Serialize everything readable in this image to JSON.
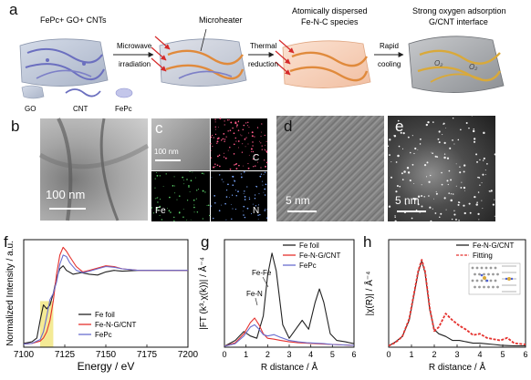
{
  "panels": {
    "a": {
      "label": "a",
      "step0_title": "FePc+ GO+ CNTs",
      "step1_title": "Microheater",
      "step2_title_line1": "Atomically dispersed",
      "step2_title_line2": "Fe-N-C species",
      "step3_title_line1": "Strong oxygen adsorption",
      "step3_title_line2": "G/CNT interface",
      "arrow1_line1": "Microwave",
      "arrow1_line2": "irradiation",
      "arrow2_line1": "Thermal",
      "arrow2_line2": "reduction",
      "arrow3_line1": "Rapid",
      "arrow3_line2": "cooling",
      "o2_label": "O₂",
      "legend": [
        "GO",
        "CNT",
        "FePc"
      ]
    },
    "b": {
      "label": "b",
      "scale": "100 nm"
    },
    "c": {
      "label": "c",
      "scale": "100 nm",
      "maps": [
        "C",
        "Fe",
        "N"
      ]
    },
    "d": {
      "label": "d",
      "scale": "5 nm"
    },
    "e": {
      "label": "e",
      "scale": "5 nm"
    },
    "f": {
      "label": "f"
    },
    "g": {
      "label": "g"
    },
    "h": {
      "label": "h"
    }
  },
  "chart_data": [
    {
      "type": "line",
      "panel": "f",
      "xlabel": "Energy / eV",
      "ylabel": "Normalized Intensity / a.u.",
      "xlim": [
        7100,
        7200
      ],
      "xticks": [
        7100,
        7125,
        7150,
        7175,
        7200
      ],
      "highlight_range": [
        7110,
        7118
      ],
      "highlight_color": "#f3e88a",
      "series": [
        {
          "name": "Fe foil",
          "color": "#222222",
          "x": [
            7100,
            7105,
            7108,
            7110,
            7112,
            7114,
            7116,
            7118,
            7120,
            7122,
            7124,
            7126,
            7130,
            7135,
            7140,
            7145,
            7150,
            7155,
            7160,
            7170,
            7180,
            7190,
            7200
          ],
          "y": [
            0.05,
            0.07,
            0.12,
            0.35,
            0.55,
            0.5,
            0.55,
            0.7,
            0.9,
            1.02,
            1.06,
            1.0,
            0.95,
            0.97,
            0.95,
            0.94,
            0.98,
            1.0,
            0.99,
            1.0,
            1.0,
            1.0,
            1.0
          ]
        },
        {
          "name": "Fe-N-G/CNT",
          "color": "#e5312d",
          "x": [
            7100,
            7105,
            7110,
            7112,
            7114,
            7116,
            7118,
            7120,
            7122,
            7124,
            7126,
            7128,
            7132,
            7136,
            7140,
            7145,
            7150,
            7155,
            7160,
            7170,
            7180,
            7190,
            7200
          ],
          "y": [
            0.04,
            0.05,
            0.08,
            0.12,
            0.2,
            0.35,
            0.6,
            0.95,
            1.2,
            1.3,
            1.25,
            1.18,
            1.05,
            0.98,
            1.0,
            1.03,
            1.06,
            1.05,
            1.02,
            1.0,
            1.0,
            1.0,
            1.0
          ]
        },
        {
          "name": "FePc",
          "color": "#6a6ecf",
          "x": [
            7100,
            7105,
            7110,
            7112,
            7114,
            7116,
            7118,
            7120,
            7122,
            7124,
            7126,
            7128,
            7132,
            7136,
            7140,
            7145,
            7150,
            7155,
            7160,
            7170,
            7180,
            7190,
            7200
          ],
          "y": [
            0.04,
            0.05,
            0.1,
            0.2,
            0.4,
            0.62,
            0.7,
            0.85,
            1.08,
            1.2,
            1.18,
            1.1,
            1.0,
            0.97,
            0.99,
            1.02,
            1.05,
            1.04,
            1.02,
            1.0,
            1.0,
            1.0,
            1.0
          ]
        }
      ]
    },
    {
      "type": "line",
      "panel": "g",
      "xlabel": "R distance / Å",
      "ylabel": "|FT (k³·χ(k))| / Å⁻⁴",
      "xlim": [
        0,
        6
      ],
      "xticks": [
        0,
        1,
        2,
        3,
        4,
        5,
        6
      ],
      "annotations": [
        "Fe-Fe",
        "Fe-N"
      ],
      "series": [
        {
          "name": "Fe foil",
          "color": "#222222",
          "x": [
            0,
            0.5,
            0.9,
            1.2,
            1.5,
            1.8,
            2.0,
            2.2,
            2.4,
            2.7,
            3.0,
            3.3,
            3.6,
            3.9,
            4.2,
            4.4,
            4.6,
            4.9,
            5.2,
            5.6,
            6.0
          ],
          "y": [
            0.2,
            1.5,
            3.5,
            2.5,
            2.0,
            7.0,
            16.0,
            21.0,
            17.0,
            5.0,
            2.0,
            4.0,
            6.0,
            4.0,
            10.0,
            13.0,
            10.0,
            3.0,
            1.5,
            1.2,
            0.8
          ]
        },
        {
          "name": "Fe-N-G/CNT",
          "color": "#e5312d",
          "x": [
            0,
            0.5,
            0.9,
            1.2,
            1.4,
            1.6,
            1.8,
            2.0,
            2.3,
            2.6,
            3.0,
            3.4,
            3.8,
            4.2,
            4.6,
            5.0,
            5.5,
            6.0
          ],
          "y": [
            0.2,
            1.0,
            3.0,
            5.5,
            6.5,
            5.0,
            3.0,
            2.0,
            1.8,
            1.5,
            1.2,
            1.0,
            0.9,
            0.8,
            0.7,
            0.6,
            0.5,
            0.4
          ]
        },
        {
          "name": "FePc",
          "color": "#6a6ecf",
          "x": [
            0,
            0.5,
            0.9,
            1.2,
            1.4,
            1.6,
            1.8,
            2.0,
            2.3,
            2.6,
            3.0,
            3.4,
            3.8,
            4.2,
            4.6,
            5.0,
            5.5,
            6.0
          ],
          "y": [
            0.2,
            0.8,
            2.5,
            4.5,
            5.0,
            4.0,
            2.8,
            2.5,
            2.8,
            2.2,
            1.5,
            1.2,
            1.0,
            0.9,
            0.8,
            0.6,
            0.5,
            0.4
          ]
        }
      ]
    },
    {
      "type": "line",
      "panel": "h",
      "xlabel": "R distance / Å",
      "ylabel": "|χ(R)| / Å⁻⁴",
      "xlim": [
        0,
        6
      ],
      "xticks": [
        0,
        1,
        2,
        3,
        4,
        5,
        6
      ],
      "series": [
        {
          "name": "Fe-N-G/CNT",
          "color": "#222222",
          "style": "line",
          "x": [
            0,
            0.3,
            0.6,
            0.9,
            1.1,
            1.3,
            1.45,
            1.6,
            1.8,
            2.0,
            2.2,
            2.5,
            2.8,
            3.1,
            3.4,
            3.7,
            4.0,
            4.3,
            4.6,
            4.9,
            5.2,
            5.5,
            6.0
          ],
          "y": [
            0.1,
            0.4,
            0.8,
            2.0,
            3.8,
            5.6,
            6.4,
            5.5,
            2.8,
            1.3,
            1.0,
            0.8,
            0.5,
            0.5,
            0.4,
            0.3,
            0.3,
            0.25,
            0.2,
            0.15,
            0.12,
            0.1,
            0.1
          ]
        },
        {
          "name": "Fitting",
          "color": "#e5312d",
          "style": "dashed",
          "x": [
            0,
            0.3,
            0.6,
            0.9,
            1.1,
            1.3,
            1.45,
            1.6,
            1.8,
            2.0,
            2.2,
            2.5,
            2.8,
            3.1,
            3.4,
            3.7,
            4.0,
            4.3,
            4.6,
            4.9,
            5.2,
            5.5,
            6.0
          ],
          "y": [
            0.1,
            0.35,
            0.8,
            2.1,
            3.9,
            5.7,
            6.5,
            5.6,
            2.9,
            1.2,
            1.5,
            2.5,
            2.0,
            1.6,
            1.3,
            0.9,
            1.0,
            0.7,
            0.6,
            0.5,
            0.7,
            0.3,
            0.2
          ]
        }
      ]
    }
  ]
}
